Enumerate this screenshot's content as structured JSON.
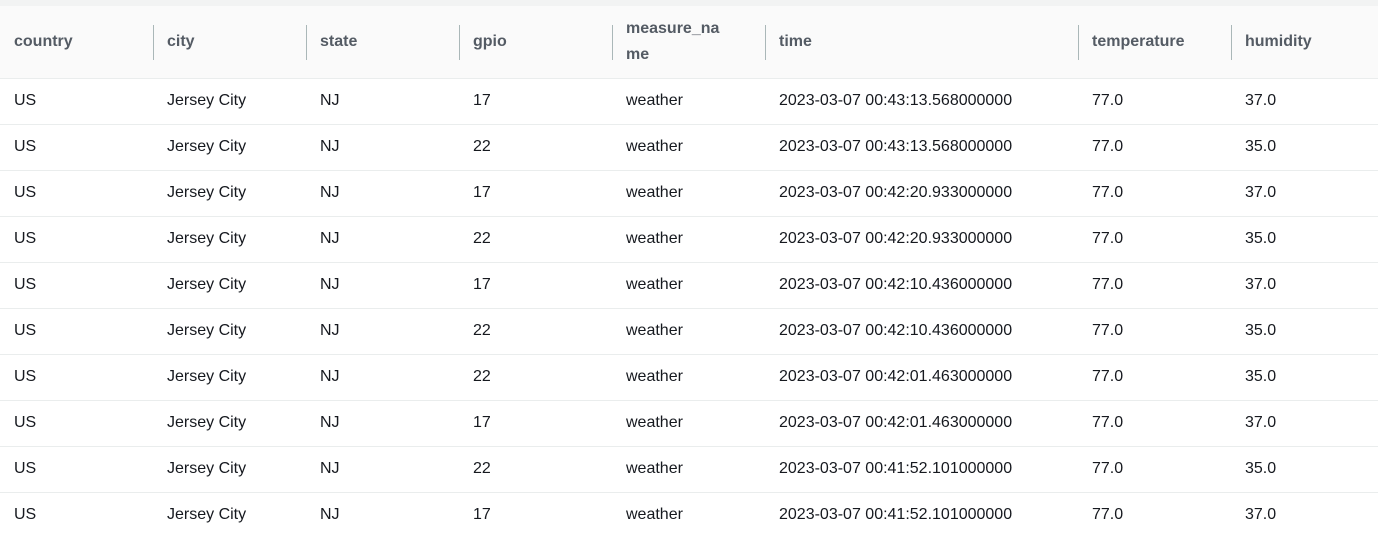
{
  "columns": [
    "country",
    "city",
    "state",
    "gpio",
    "measure_name",
    "time",
    "temperature",
    "humidity"
  ],
  "header_display": [
    "country",
    "city",
    "state",
    "gpio",
    "measure_na\nme",
    "time",
    "temperature",
    "humidity"
  ],
  "rows": [
    [
      "US",
      "Jersey City",
      "NJ",
      "17",
      "weather",
      "2023-03-07 00:43:13.568000000",
      "77.0",
      "37.0"
    ],
    [
      "US",
      "Jersey City",
      "NJ",
      "22",
      "weather",
      "2023-03-07 00:43:13.568000000",
      "77.0",
      "35.0"
    ],
    [
      "US",
      "Jersey City",
      "NJ",
      "17",
      "weather",
      "2023-03-07 00:42:20.933000000",
      "77.0",
      "37.0"
    ],
    [
      "US",
      "Jersey City",
      "NJ",
      "22",
      "weather",
      "2023-03-07 00:42:20.933000000",
      "77.0",
      "35.0"
    ],
    [
      "US",
      "Jersey City",
      "NJ",
      "17",
      "weather",
      "2023-03-07 00:42:10.436000000",
      "77.0",
      "37.0"
    ],
    [
      "US",
      "Jersey City",
      "NJ",
      "22",
      "weather",
      "2023-03-07 00:42:10.436000000",
      "77.0",
      "35.0"
    ],
    [
      "US",
      "Jersey City",
      "NJ",
      "22",
      "weather",
      "2023-03-07 00:42:01.463000000",
      "77.0",
      "35.0"
    ],
    [
      "US",
      "Jersey City",
      "NJ",
      "17",
      "weather",
      "2023-03-07 00:42:01.463000000",
      "77.0",
      "37.0"
    ],
    [
      "US",
      "Jersey City",
      "NJ",
      "22",
      "weather",
      "2023-03-07 00:41:52.101000000",
      "77.0",
      "35.0"
    ],
    [
      "US",
      "Jersey City",
      "NJ",
      "17",
      "weather",
      "2023-03-07 00:41:52.101000000",
      "77.0",
      "37.0"
    ]
  ],
  "colors": {
    "header_text": "#545b64",
    "cell_text": "#16191f",
    "row_border": "#eaeded",
    "header_divider": "#aab7b8"
  }
}
